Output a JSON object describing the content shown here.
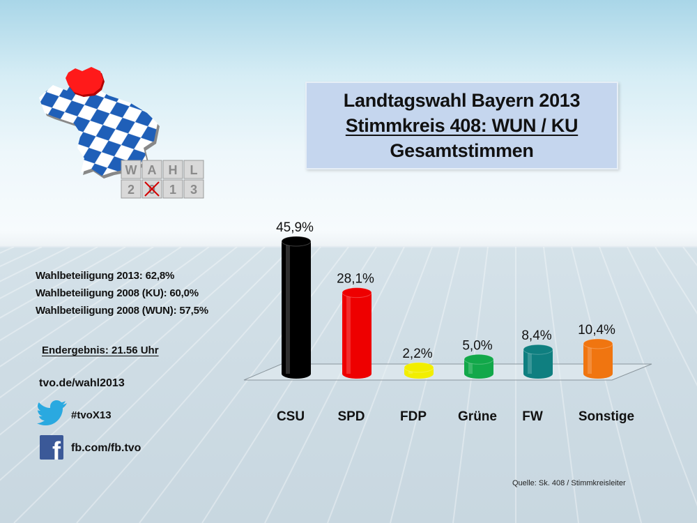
{
  "header": {
    "title_line1": "Landtagswahl Bayern 2013",
    "title_line2": "Stimmkreis 408: WUN / KU",
    "title_line3": "Gesamtstimmen"
  },
  "logo": {
    "icon": "bavaria-map-icon",
    "blocks_top": [
      "W",
      "A",
      "H",
      "L"
    ],
    "blocks_bottom": [
      "2",
      "0",
      "1",
      "3"
    ],
    "highlight_color": "#ff1a1a",
    "rhombus_color": "#1f5fb8"
  },
  "info": {
    "turnout_2013": "Wahlbeteiligung 2013: 62,8%",
    "turnout_2008_ku": "Wahlbeteiligung 2008 (KU): 60,0%",
    "turnout_2008_wun": "Wahlbeteiligung 2008 (WUN): 57,5%",
    "final_result": "Endergebnis: 21.56 Uhr",
    "website": "tvo.de/wahl2013",
    "twitter_icon": "twitter-bird-icon",
    "twitter": "#tvoX13",
    "facebook_icon": "facebook-icon",
    "facebook": "fb.com/fb.tvo",
    "source": "Quelle: Sk. 408 / Stimmkreisleiter"
  },
  "chart_data": {
    "type": "bar",
    "title": "Landtagswahl Bayern 2013 – Stimmkreis 408: WUN / KU – Gesamtstimmen",
    "xlabel": "",
    "ylabel": "",
    "categories": [
      "CSU",
      "SPD",
      "FDP",
      "Grüne",
      "FW",
      "Sonstige"
    ],
    "values": [
      45.9,
      28.1,
      2.2,
      5.0,
      8.4,
      10.4
    ],
    "labels": [
      "45,9%",
      "28,1%",
      "2,2%",
      "5,0%",
      "8,4%",
      "10,4%"
    ],
    "colors": [
      "#000000",
      "#ee0000",
      "#f2ee00",
      "#12a84a",
      "#0f7f80",
      "#f07510"
    ],
    "unit": "%",
    "ylim": [
      0,
      50
    ],
    "grid": false,
    "legend": "none",
    "style": "3d-cylinder"
  }
}
